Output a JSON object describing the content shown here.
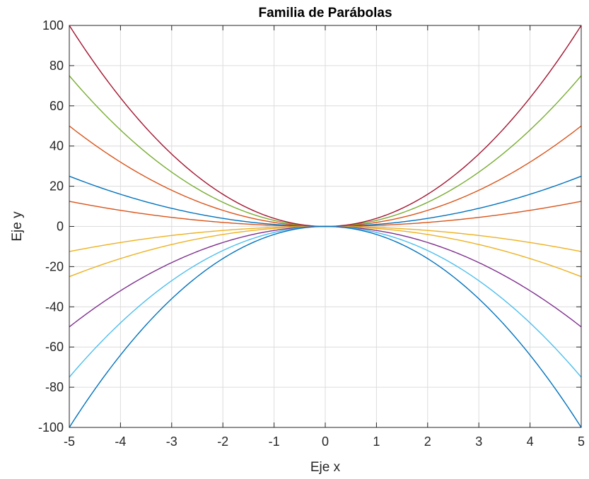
{
  "chart_data": {
    "type": "line",
    "title": "Familia de Parábolas",
    "xlabel": "Eje x",
    "ylabel": "Eje y",
    "xlim": [
      -5,
      5
    ],
    "ylim": [
      -100,
      100
    ],
    "grid": true,
    "x_ticks": [
      -5,
      -4,
      -3,
      -2,
      -1,
      0,
      1,
      2,
      3,
      4,
      5
    ],
    "y_ticks": [
      -100,
      -80,
      -60,
      -40,
      -20,
      0,
      20,
      40,
      60,
      80,
      100
    ],
    "x": [
      -5,
      -4.5,
      -4,
      -3.5,
      -3,
      -2.5,
      -2,
      -1.5,
      -1,
      -0.5,
      0,
      0.5,
      1,
      1.5,
      2,
      2.5,
      3,
      3.5,
      4,
      4.5,
      5
    ],
    "series": [
      {
        "coefficient": 0.5,
        "color": "#D95319",
        "values": [
          12.5,
          10.125,
          8,
          6.125,
          4.5,
          3.125,
          2,
          1.125,
          0.5,
          0.125,
          0,
          0.125,
          0.5,
          1.125,
          2,
          3.125,
          4.5,
          6.125,
          8,
          10.125,
          12.5
        ]
      },
      {
        "coefficient": 1,
        "color": "#0072BD",
        "values": [
          25,
          20.25,
          16,
          12.25,
          9,
          6.25,
          4,
          2.25,
          1,
          0.25,
          0,
          0.25,
          1,
          2.25,
          4,
          6.25,
          9,
          12.25,
          16,
          20.25,
          25
        ]
      },
      {
        "coefficient": 2,
        "color": "#D95319",
        "values": [
          50,
          40.5,
          32,
          24.5,
          18,
          12.5,
          8,
          4.5,
          2,
          0.5,
          0,
          0.5,
          2,
          4.5,
          8,
          12.5,
          18,
          24.5,
          32,
          40.5,
          50
        ]
      },
      {
        "coefficient": 3,
        "color": "#77AC30",
        "values": [
          75,
          60.75,
          48,
          36.75,
          27,
          18.75,
          12,
          6.75,
          3,
          0.75,
          0,
          0.75,
          3,
          6.75,
          12,
          18.75,
          27,
          36.75,
          48,
          60.75,
          75
        ]
      },
      {
        "coefficient": 4,
        "color": "#A2142F",
        "values": [
          100,
          81,
          64,
          49,
          36,
          25,
          16,
          9,
          4,
          1,
          0,
          1,
          4,
          9,
          16,
          25,
          36,
          49,
          64,
          81,
          100
        ]
      },
      {
        "coefficient": -0.5,
        "color": "#EDB120",
        "values": [
          -12.5,
          -10.125,
          -8,
          -6.125,
          -4.5,
          -3.125,
          -2,
          -1.125,
          -0.5,
          -0.125,
          0,
          -0.125,
          -0.5,
          -1.125,
          -2,
          -3.125,
          -4.5,
          -6.125,
          -8,
          -10.125,
          -12.5
        ]
      },
      {
        "coefficient": -1,
        "color": "#EDB120",
        "values": [
          -25,
          -20.25,
          -16,
          -12.25,
          -9,
          -6.25,
          -4,
          -2.25,
          -1,
          -0.25,
          0,
          -0.25,
          -1,
          -2.25,
          -4,
          -6.25,
          -9,
          -12.25,
          -16,
          -20.25,
          -25
        ]
      },
      {
        "coefficient": -2,
        "color": "#7E2F8E",
        "values": [
          -50,
          -40.5,
          -32,
          -24.5,
          -18,
          -12.5,
          -8,
          -4.5,
          -2,
          -0.5,
          0,
          -0.5,
          -2,
          -4.5,
          -8,
          -12.5,
          -18,
          -24.5,
          -32,
          -40.5,
          -50
        ]
      },
      {
        "coefficient": -3,
        "color": "#4DBEEE",
        "values": [
          -75,
          -60.75,
          -48,
          -36.75,
          -27,
          -18.75,
          -12,
          -6.75,
          -3,
          -0.75,
          0,
          -0.75,
          -3,
          -6.75,
          -12,
          -18.75,
          -27,
          -36.75,
          -48,
          -60.75,
          -75
        ]
      },
      {
        "coefficient": -4,
        "color": "#0072BD",
        "values": [
          -100,
          -81,
          -64,
          -49,
          -36,
          -25,
          -16,
          -9,
          -4,
          -1,
          0,
          -1,
          -4,
          -9,
          -16,
          -25,
          -36,
          -49,
          -64,
          -81,
          -100
        ]
      }
    ]
  }
}
